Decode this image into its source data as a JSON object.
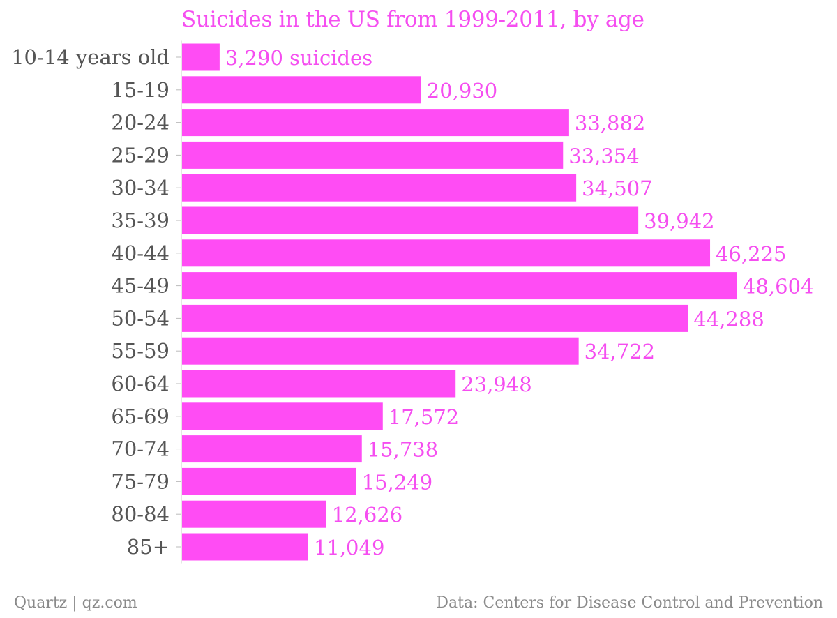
{
  "chart_data": {
    "type": "bar",
    "orientation": "horizontal",
    "title": "Suicides in the US from 1999-2011, by age",
    "categories": [
      "10-14 years old",
      "15-19",
      "20-24",
      "25-29",
      "30-34",
      "35-39",
      "40-44",
      "45-49",
      "50-54",
      "55-59",
      "60-64",
      "65-69",
      "70-74",
      "75-79",
      "80-84",
      "85+"
    ],
    "values": [
      3290,
      20930,
      33882,
      33354,
      34507,
      39942,
      46225,
      48604,
      44288,
      34722,
      23948,
      17572,
      15738,
      15249,
      12626,
      11049
    ],
    "value_labels": [
      "3,290 suicides",
      "20,930",
      "33,882",
      "33,354",
      "34,507",
      "39,942",
      "46,225",
      "48,604",
      "44,288",
      "34,722",
      "23,948",
      "17,572",
      "15,738",
      "15,249",
      "12,626",
      "11,049"
    ],
    "bar_color": "#ff4cf4",
    "label_color": "#f54ef0",
    "category_color": "#555555",
    "grid": false,
    "legend": "none",
    "xlim": [
      0,
      48604
    ]
  },
  "footer": {
    "source_left": "Quartz | qz.com",
    "source_right": "Data: Centers for Disease Control and Prevention"
  }
}
